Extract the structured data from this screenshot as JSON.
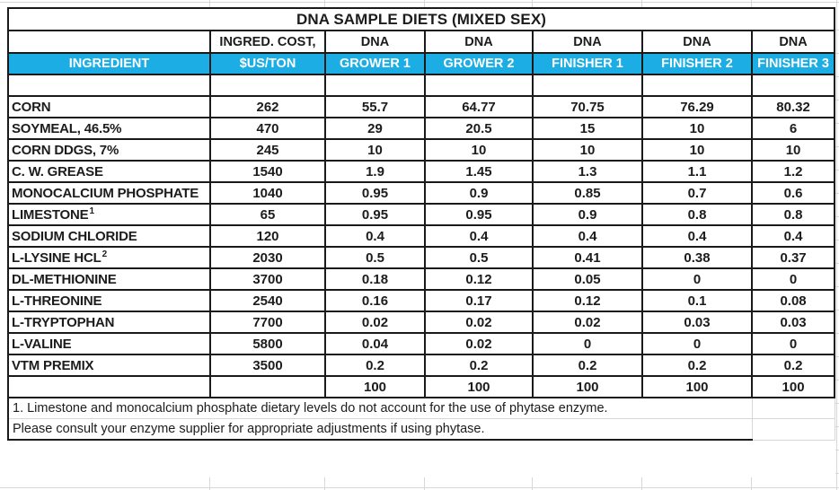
{
  "title": "DNA SAMPLE DIETS (MIXED SEX)",
  "columns": {
    "ingredient_header": {
      "line1": "",
      "line2": "INGREDIENT"
    },
    "cost_header": {
      "line1": "INGRED. COST,",
      "line2": "$US/TON"
    },
    "diets": [
      {
        "line1": "DNA",
        "line2": "GROWER 1"
      },
      {
        "line1": "DNA",
        "line2": "GROWER 2"
      },
      {
        "line1": "DNA",
        "line2": "FINISHER 1"
      },
      {
        "line1": "DNA",
        "line2": "FINISHER 2"
      },
      {
        "line1": "DNA",
        "line2": "FINISHER 3"
      }
    ]
  },
  "rows": [
    {
      "ingredient": "CORN",
      "sup": "",
      "cost": "262",
      "values": [
        "55.7",
        "64.77",
        "70.75",
        "76.29",
        "80.32"
      ]
    },
    {
      "ingredient": "SOYMEAL, 46.5%",
      "sup": "",
      "cost": "470",
      "values": [
        "29",
        "20.5",
        "15",
        "10",
        "6"
      ]
    },
    {
      "ingredient": "CORN DDGS, 7%",
      "sup": "",
      "cost": "245",
      "values": [
        "10",
        "10",
        "10",
        "10",
        "10"
      ]
    },
    {
      "ingredient": "C. W. GREASE",
      "sup": "",
      "cost": "1540",
      "values": [
        "1.9",
        "1.45",
        "1.3",
        "1.1",
        "1.2"
      ]
    },
    {
      "ingredient": "MONOCALCIUM PHOSPHATE",
      "sup": "",
      "cost": "1040",
      "values": [
        "0.95",
        "0.9",
        "0.85",
        "0.7",
        "0.6"
      ]
    },
    {
      "ingredient": "LIMESTONE",
      "sup": "1",
      "cost": "65",
      "values": [
        "0.95",
        "0.95",
        "0.9",
        "0.8",
        "0.8"
      ]
    },
    {
      "ingredient": "SODIUM CHLORIDE",
      "sup": "",
      "cost": "120",
      "values": [
        "0.4",
        "0.4",
        "0.4",
        "0.4",
        "0.4"
      ]
    },
    {
      "ingredient": "L-LYSINE HCL",
      "sup": "2",
      "cost": "2030",
      "values": [
        "0.5",
        "0.5",
        "0.41",
        "0.38",
        "0.37"
      ]
    },
    {
      "ingredient": "DL-METHIONINE",
      "sup": "",
      "cost": "3700",
      "values": [
        "0.18",
        "0.12",
        "0.05",
        "0",
        "0"
      ]
    },
    {
      "ingredient": "L-THREONINE",
      "sup": "",
      "cost": "2540",
      "values": [
        "0.16",
        "0.17",
        "0.12",
        "0.1",
        "0.08"
      ]
    },
    {
      "ingredient": "L-TRYPTOPHAN",
      "sup": "",
      "cost": "7700",
      "values": [
        "0.02",
        "0.02",
        "0.02",
        "0.03",
        "0.03"
      ]
    },
    {
      "ingredient": "L-VALINE",
      "sup": "",
      "cost": "5800",
      "values": [
        "0.04",
        "0.02",
        "0",
        "0",
        "0"
      ]
    },
    {
      "ingredient": "VTM PREMIX",
      "sup": "",
      "cost": "3500",
      "values": [
        "0.2",
        "0.2",
        "0.2",
        "0.2",
        "0.2"
      ]
    }
  ],
  "totals": {
    "ingredient": "",
    "cost": "",
    "values": [
      "100",
      "100",
      "100",
      "100",
      "100"
    ]
  },
  "footnotes": [
    "1. Limestone and monocalcium phosphate dietary levels do not account for the use of phytase enzyme.",
    "Please consult your enzyme supplier for appropriate adjustments if using phytase."
  ],
  "colors": {
    "header_blue": "#1cade4",
    "header_text": "#ffffff",
    "border_black": "#1a1a1a",
    "gridline_gray": "#d7d7d7",
    "text": "#1c1c1c"
  }
}
